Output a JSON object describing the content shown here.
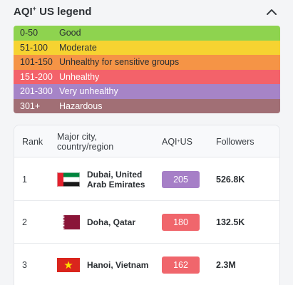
{
  "legend": {
    "title": "AQI",
    "title_sup": "+",
    "title_suffix": " US legend",
    "rows": [
      {
        "range": "0-50",
        "label": "Good",
        "color": "#8ed34f"
      },
      {
        "range": "51-100",
        "label": "Moderate",
        "color": "#f6d331"
      },
      {
        "range": "101-150",
        "label": "Unhealthy for sensitive groups",
        "color": "#f59446"
      },
      {
        "range": "151-200",
        "label": "Unhealthy",
        "color": "#f3626a"
      },
      {
        "range": "201-300",
        "label": "Very unhealthy",
        "color": "#a684c7"
      },
      {
        "range": "301+",
        "label": "Hazardous",
        "color": "#a16f75"
      }
    ]
  },
  "table": {
    "headers": {
      "rank": "Rank",
      "city": "Major city, country/region",
      "aqi": "AQI",
      "aqi_sup": "+",
      "aqi_suffix": " US",
      "followers": "Followers"
    },
    "rows": [
      {
        "rank": "1",
        "city": "Dubai, United Arab Emirates",
        "flag": "uae-flag",
        "aqi": "205",
        "badge_color": "#a67fc7",
        "followers": "526.8K"
      },
      {
        "rank": "2",
        "city": "Doha, Qatar",
        "flag": "qatar-flag",
        "aqi": "180",
        "badge_color": "#f0666c",
        "followers": "132.5K"
      },
      {
        "rank": "3",
        "city": "Hanoi, Vietnam",
        "flag": "vietnam-flag",
        "aqi": "162",
        "badge_color": "#f0666c",
        "followers": "2.3M"
      }
    ]
  }
}
